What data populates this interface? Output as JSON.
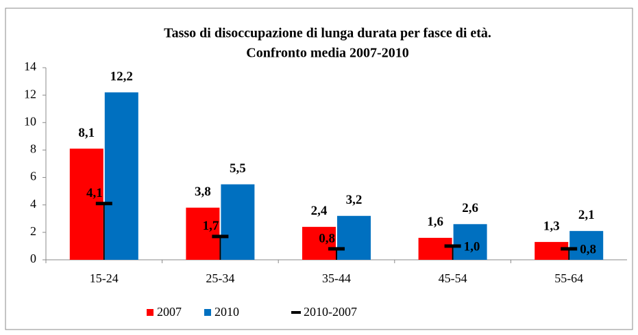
{
  "chart_data": {
    "type": "bar",
    "title": [
      "Tasso di disoccupazione di lunga durata per fasce di età.",
      "Confronto media 2007-2010"
    ],
    "categories": [
      "15-24",
      "25-34",
      "35-44",
      "45-54",
      "55-64"
    ],
    "series": [
      {
        "name": "2007",
        "color": "#ff0000",
        "values": [
          8.1,
          3.8,
          2.4,
          1.6,
          1.3
        ],
        "value_labels": [
          "8,1",
          "3,8",
          "2,4",
          "1,6",
          "1,3"
        ]
      },
      {
        "name": "2010",
        "color": "#0070c0",
        "values": [
          12.2,
          5.5,
          3.2,
          2.6,
          2.1
        ],
        "value_labels": [
          "12,2",
          "5,5",
          "3,2",
          "2,6",
          "2,1"
        ]
      },
      {
        "name": "2010-2007",
        "color": "#000000",
        "values": [
          4.1,
          1.7,
          0.8,
          1.0,
          0.8
        ],
        "value_labels": [
          "4,1",
          "1,7",
          "0,8",
          "1,0",
          "0,8"
        ]
      }
    ],
    "ylim": [
      0,
      14
    ],
    "yticks": [
      0,
      2,
      4,
      6,
      8,
      10,
      12,
      14
    ],
    "legend": "bottom"
  }
}
